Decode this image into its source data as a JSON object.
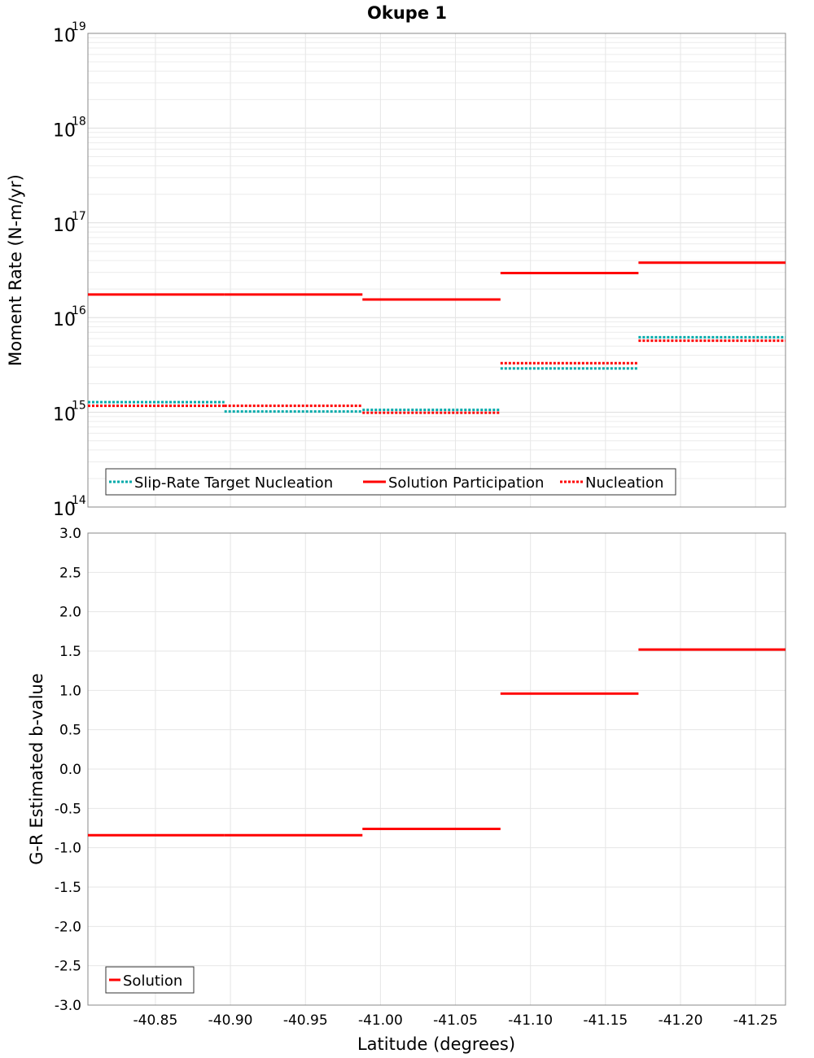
{
  "title": "Okupe 1",
  "chart_data": [
    {
      "type": "line",
      "panel": "top",
      "ylabel": "Moment Rate (N-m/yr)",
      "yscale": "log",
      "ylim": [
        100000000000000.0,
        1e+19
      ],
      "xlim": [
        -40.805,
        -41.27
      ],
      "grid": true,
      "y_ticks": [
        {
          "base": "10",
          "exp": "14",
          "value": 100000000000000.0
        },
        {
          "base": "10",
          "exp": "15",
          "value": 1000000000000000.0
        },
        {
          "base": "10",
          "exp": "16",
          "value": 1e+16
        },
        {
          "base": "10",
          "exp": "17",
          "value": 1e+17
        },
        {
          "base": "10",
          "exp": "18",
          "value": 1e+18
        },
        {
          "base": "10",
          "exp": "19",
          "value": 1e+19
        }
      ],
      "legend_position": "bottom-left",
      "series": [
        {
          "name": "Slip-Rate Target Nucleation",
          "color": "#00AAAA",
          "dash": "dotted",
          "segments": [
            {
              "x0": -40.805,
              "x1": -40.896,
              "y": 1280000000000000.0
            },
            {
              "x0": -40.896,
              "x1": -40.988,
              "y": 1020000000000000.0
            },
            {
              "x0": -40.988,
              "x1": -41.08,
              "y": 1060000000000000.0
            },
            {
              "x0": -41.08,
              "x1": -41.172,
              "y": 2900000000000000.0
            },
            {
              "x0": -41.172,
              "x1": -41.27,
              "y": 6200000000000000.0
            }
          ]
        },
        {
          "name": "Solution Participation",
          "color": "#FF0000",
          "dash": "solid",
          "segments": [
            {
              "x0": -40.805,
              "x1": -40.896,
              "y": 1.75e+16
            },
            {
              "x0": -40.896,
              "x1": -40.988,
              "y": 1.75e+16
            },
            {
              "x0": -40.988,
              "x1": -41.08,
              "y": 1.55e+16
            },
            {
              "x0": -41.08,
              "x1": -41.172,
              "y": 2.95e+16
            },
            {
              "x0": -41.172,
              "x1": -41.27,
              "y": 3.8e+16
            }
          ]
        },
        {
          "name": "Nucleation",
          "color": "#FF0000",
          "dash": "dotted",
          "segments": [
            {
              "x0": -40.805,
              "x1": -40.896,
              "y": 1170000000000000.0
            },
            {
              "x0": -40.896,
              "x1": -40.988,
              "y": 1170000000000000.0
            },
            {
              "x0": -40.988,
              "x1": -41.08,
              "y": 990000000000000.0
            },
            {
              "x0": -41.08,
              "x1": -41.172,
              "y": 3300000000000000.0
            },
            {
              "x0": -41.172,
              "x1": -41.27,
              "y": 5700000000000000.0
            }
          ]
        }
      ]
    },
    {
      "type": "line",
      "panel": "bottom",
      "ylabel": "G-R Estimated b-value",
      "xlabel": "Latitude (degrees)",
      "ylim": [
        -3.0,
        3.0
      ],
      "xlim": [
        -40.805,
        -41.27
      ],
      "grid": true,
      "y_ticks": [
        "3.0",
        "2.5",
        "2.0",
        "1.5",
        "1.0",
        "0.5",
        "0.0",
        "-0.5",
        "-1.0",
        "-1.5",
        "-2.0",
        "-2.5",
        "-3.0"
      ],
      "x_ticks": [
        "-40.85",
        "-40.90",
        "-40.95",
        "-41.00",
        "-41.05",
        "-41.10",
        "-41.15",
        "-41.20",
        "-41.25"
      ],
      "legend_position": "bottom-left",
      "series": [
        {
          "name": "Solution",
          "color": "#FF0000",
          "dash": "solid",
          "segments": [
            {
              "x0": -40.805,
              "x1": -40.896,
              "y": -0.84
            },
            {
              "x0": -40.896,
              "x1": -40.988,
              "y": -0.84
            },
            {
              "x0": -40.988,
              "x1": -41.08,
              "y": -0.76
            },
            {
              "x0": -41.08,
              "x1": -41.172,
              "y": 0.96
            },
            {
              "x0": -41.172,
              "x1": -41.27,
              "y": 1.52
            }
          ]
        }
      ]
    }
  ]
}
